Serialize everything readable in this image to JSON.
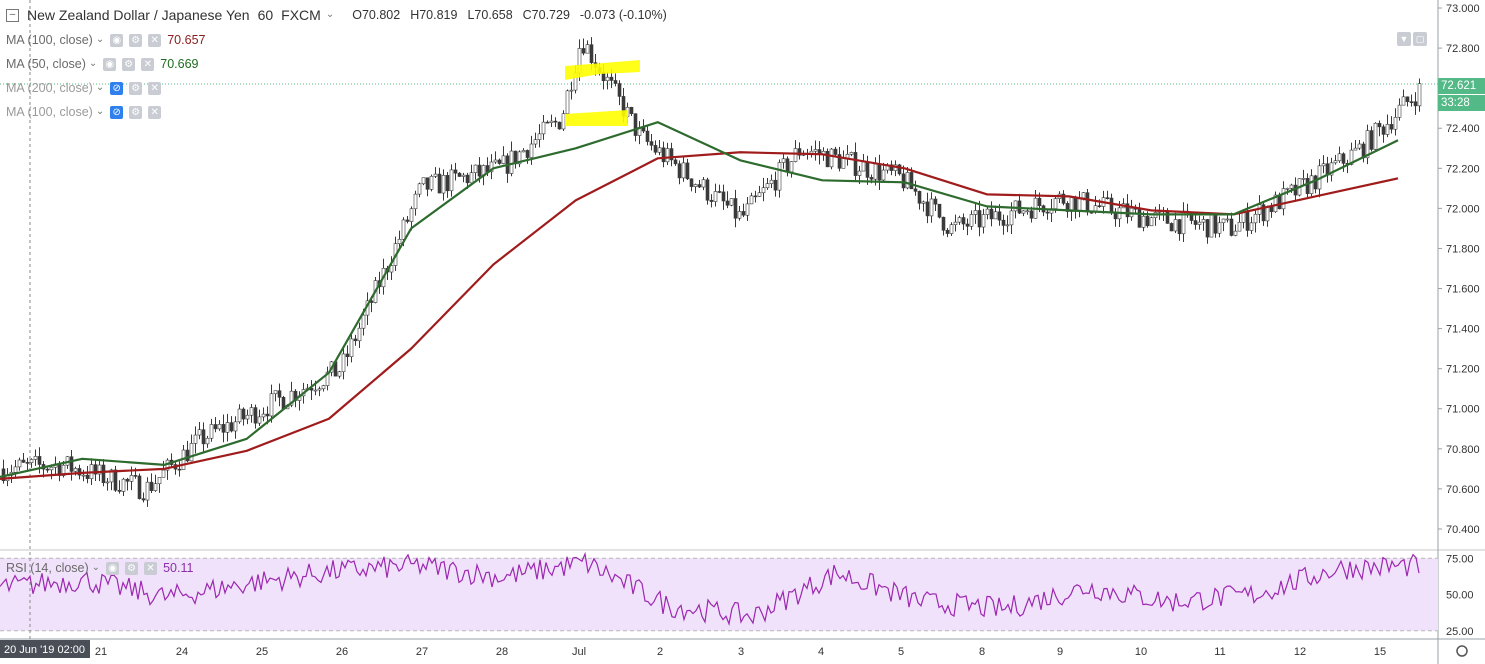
{
  "header": {
    "symbol_title": "New Zealand Dollar / Japanese Yen",
    "interval": "60",
    "source": "FXCM",
    "open": "O70.802",
    "high": "H70.819",
    "low": "L70.658",
    "close": "C70.729",
    "change": "-0.073 (-0.10%)"
  },
  "indicators": [
    {
      "label": "MA (100, close)",
      "value": "70.657",
      "color": "#8b1d1d",
      "hidden": false
    },
    {
      "label": "MA (50, close)",
      "value": "70.669",
      "color": "#1e6b1e",
      "hidden": false
    },
    {
      "label": "MA (200, close)",
      "value": "",
      "color": "#9a9a9a",
      "hidden": true
    },
    {
      "label": "MA (100, close)",
      "value": "",
      "color": "#9a9a9a",
      "hidden": true
    }
  ],
  "rsi": {
    "label": "RSI (14, close)",
    "value": "50.11",
    "color": "#8b2fa8"
  },
  "colors": {
    "up_candle": "#ffffff",
    "candle_outline": "#3a3a3a",
    "ma50": "#2e6b2e",
    "ma100": "#a01c1c",
    "rsi_line": "#9c27b0",
    "rsi_band": "#f0e2fb",
    "current_price_tag": "#53b987",
    "highlight": "#ffff00"
  },
  "price_axis": {
    "ticks": [
      "73.000",
      "72.800",
      "72.600",
      "72.400",
      "72.200",
      "72.000",
      "71.800",
      "71.600",
      "71.400",
      "71.200",
      "71.000",
      "70.800",
      "70.600",
      "70.400"
    ],
    "current_price": "72.621",
    "countdown": "33:28"
  },
  "rsi_axis": {
    "ticks": [
      "75.00",
      "50.00",
      "25.00"
    ]
  },
  "time_axis": {
    "cursor_label": "20 Jun '19  02:00",
    "ticks": [
      "21",
      "24",
      "25",
      "26",
      "27",
      "28",
      "Jul",
      "2",
      "3",
      "4",
      "5",
      "8",
      "9",
      "10",
      "11",
      "12",
      "15"
    ]
  },
  "chart_data": {
    "type": "line",
    "title": "New Zealand Dollar / Japanese Yen 60 FXCM",
    "x": [
      "20 Jun",
      "21",
      "24",
      "25",
      "26",
      "27",
      "28",
      "Jul",
      "2",
      "3",
      "4",
      "5",
      "8",
      "9",
      "10",
      "11",
      "12",
      "15"
    ],
    "ylim": [
      70.3,
      73.04
    ],
    "series": [
      {
        "name": "MA (50, close)",
        "values": [
          70.66,
          70.75,
          70.72,
          70.85,
          71.18,
          71.9,
          72.2,
          72.3,
          72.43,
          72.24,
          72.14,
          72.13,
          72.01,
          71.99,
          71.97,
          71.97,
          72.14,
          72.34
        ]
      },
      {
        "name": "MA (100, close)",
        "values": [
          70.65,
          70.68,
          70.7,
          70.79,
          70.95,
          71.3,
          71.72,
          72.04,
          72.25,
          72.28,
          72.27,
          72.2,
          72.07,
          72.06,
          71.99,
          71.97,
          72.06,
          72.15
        ]
      },
      {
        "name": "RSI (14, close)",
        "values": [
          55,
          60,
          48,
          58,
          66,
          70,
          62,
          72,
          42,
          35,
          65,
          45,
          40,
          55,
          45,
          50,
          68,
          70
        ]
      }
    ],
    "rsi_ylim": [
      20,
      80
    ],
    "grid": false,
    "legend": "top-left"
  }
}
